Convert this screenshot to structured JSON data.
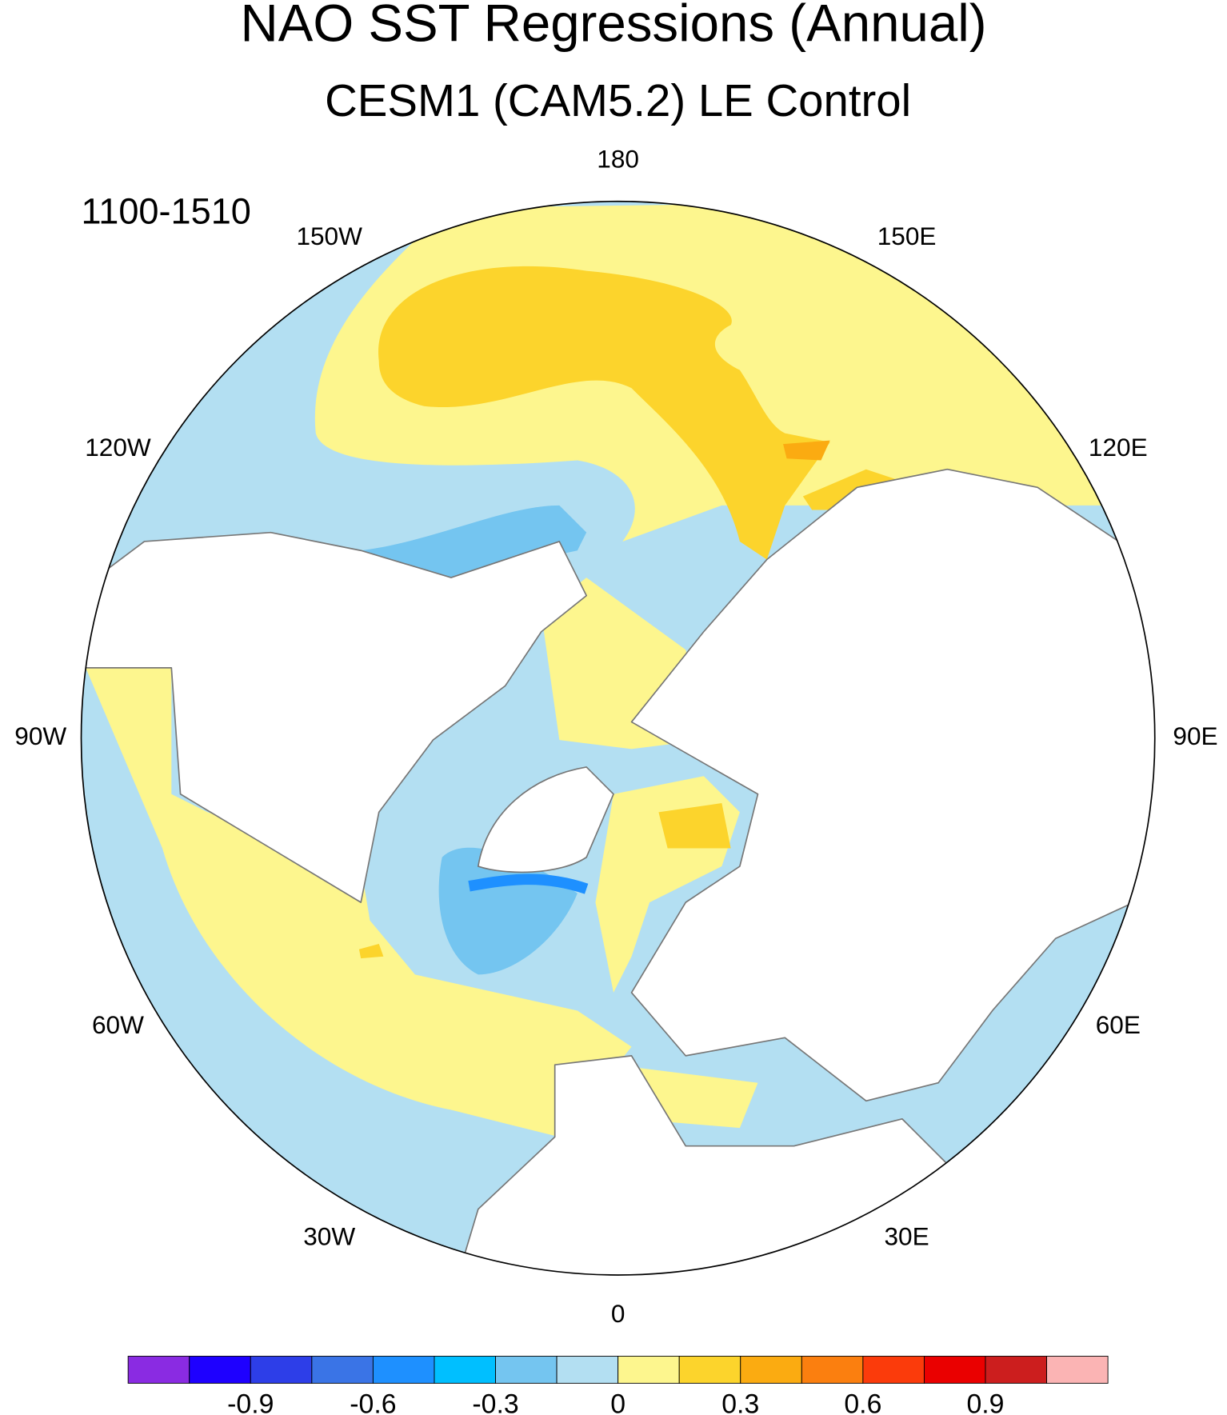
{
  "title": "NAO SST Regressions (Annual)",
  "subtitle": "CESM1 (CAM5.2) LE Control",
  "period": "1100-1510",
  "longitude_labels": [
    "0",
    "30E",
    "60E",
    "90E",
    "120E",
    "150E",
    "180",
    "150W",
    "120W",
    "90W",
    "60W",
    "30W"
  ],
  "colorbar": {
    "range": [
      -1.2,
      1.2
    ],
    "colors": [
      "#8a2be2",
      "#1e00ff",
      "#2d3ee8",
      "#3a74e6",
      "#1e90ff",
      "#00bfff",
      "#74c5f0",
      "#b3dff2",
      "#fdf68e",
      "#fcd42c",
      "#fbab11",
      "#fb7f0f",
      "#fb3b0b",
      "#ea0000",
      "#cc1e1e",
      "#fbb4b4"
    ],
    "ticks": [
      -0.9,
      -0.6,
      -0.3,
      0,
      0.3,
      0.6,
      0.9
    ]
  }
}
